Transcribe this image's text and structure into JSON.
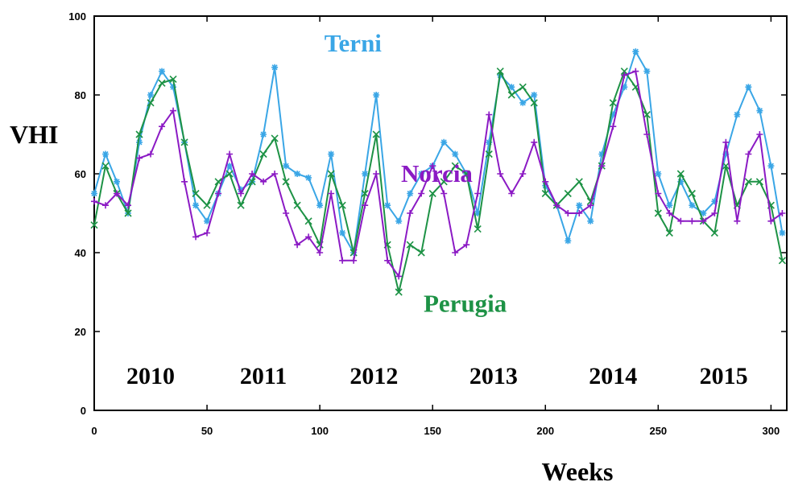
{
  "chart_data": {
    "type": "line",
    "title": "",
    "xlabel": "Weeks",
    "ylabel": "VHI",
    "xlim": [
      0,
      307
    ],
    "ylim": [
      0,
      100
    ],
    "x_ticks": [
      0,
      50,
      100,
      150,
      200,
      250,
      300
    ],
    "y_ticks": [
      0,
      20,
      40,
      60,
      80,
      100
    ],
    "grid": false,
    "legend": "inline labels",
    "year_labels": [
      {
        "text": "2010",
        "x": 25
      },
      {
        "text": "2011",
        "x": 75
      },
      {
        "text": "2012",
        "x": 124
      },
      {
        "text": "2013",
        "x": 177
      },
      {
        "text": "2014",
        "x": 230
      },
      {
        "text": "2015",
        "x": 279
      }
    ],
    "series": [
      {
        "name": "Terni",
        "color": "#3aa6e6",
        "marker": "asterisk",
        "label_at": [
          102,
          91
        ],
        "x": [
          0,
          5,
          10,
          15,
          20,
          25,
          30,
          35,
          40,
          45,
          50,
          55,
          60,
          65,
          70,
          75,
          80,
          85,
          90,
          95,
          100,
          105,
          110,
          115,
          120,
          125,
          130,
          135,
          140,
          145,
          150,
          155,
          160,
          165,
          170,
          175,
          180,
          185,
          190,
          195,
          200,
          205,
          210,
          215,
          220,
          225,
          230,
          235,
          240,
          245,
          250,
          255,
          260,
          265,
          270,
          275,
          280,
          285,
          290,
          295,
          300,
          305
        ],
        "values": [
          55,
          65,
          58,
          50,
          68,
          80,
          86,
          82,
          68,
          52,
          48,
          55,
          62,
          56,
          58,
          70,
          87,
          62,
          60,
          59,
          52,
          65,
          45,
          40,
          60,
          80,
          52,
          48,
          55,
          60,
          62,
          68,
          65,
          60,
          50,
          68,
          85,
          82,
          78,
          80,
          57,
          52,
          43,
          52,
          48,
          65,
          75,
          82,
          91,
          86,
          60,
          52,
          58,
          52,
          50,
          53,
          65,
          75,
          82,
          76,
          62,
          45
        ]
      },
      {
        "name": "Perugia",
        "color": "#1d9245",
        "marker": "x",
        "label_at": [
          146,
          25
        ],
        "x": [
          0,
          5,
          10,
          15,
          20,
          25,
          30,
          35,
          40,
          45,
          50,
          55,
          60,
          65,
          70,
          75,
          80,
          85,
          90,
          95,
          100,
          105,
          110,
          115,
          120,
          125,
          130,
          135,
          140,
          145,
          150,
          155,
          160,
          165,
          170,
          175,
          180,
          185,
          190,
          195,
          200,
          205,
          210,
          215,
          220,
          225,
          230,
          235,
          240,
          245,
          250,
          255,
          260,
          265,
          270,
          275,
          280,
          285,
          290,
          295,
          300,
          305
        ],
        "values": [
          47,
          62,
          55,
          50,
          70,
          78,
          83,
          84,
          68,
          55,
          52,
          58,
          60,
          52,
          58,
          65,
          69,
          58,
          52,
          48,
          42,
          60,
          52,
          40,
          55,
          70,
          42,
          30,
          42,
          40,
          55,
          58,
          62,
          60,
          46,
          65,
          86,
          80,
          82,
          78,
          55,
          52,
          55,
          58,
          53,
          62,
          78,
          86,
          82,
          75,
          50,
          45,
          60,
          55,
          48,
          45,
          62,
          52,
          58,
          58,
          52,
          38
        ]
      },
      {
        "name": "Norcia",
        "color": "#8b1ac4",
        "marker": "plus",
        "label_at": [
          136,
          58
        ],
        "x": [
          0,
          5,
          10,
          15,
          20,
          25,
          30,
          35,
          40,
          45,
          50,
          55,
          60,
          65,
          70,
          75,
          80,
          85,
          90,
          95,
          100,
          105,
          110,
          115,
          120,
          125,
          130,
          135,
          140,
          145,
          150,
          155,
          160,
          165,
          170,
          175,
          180,
          185,
          190,
          195,
          200,
          205,
          210,
          215,
          220,
          225,
          230,
          235,
          240,
          245,
          250,
          255,
          260,
          265,
          270,
          275,
          280,
          285,
          290,
          295,
          300,
          305
        ],
        "values": [
          53,
          52,
          55,
          52,
          64,
          65,
          72,
          76,
          58,
          44,
          45,
          55,
          65,
          55,
          60,
          58,
          60,
          50,
          42,
          44,
          40,
          55,
          38,
          38,
          52,
          60,
          38,
          34,
          50,
          55,
          62,
          55,
          40,
          42,
          55,
          75,
          60,
          55,
          60,
          68,
          58,
          52,
          50,
          50,
          52,
          62,
          72,
          85,
          86,
          70,
          55,
          50,
          48,
          48,
          48,
          50,
          68,
          48,
          65,
          70,
          48,
          50
        ]
      }
    ]
  }
}
